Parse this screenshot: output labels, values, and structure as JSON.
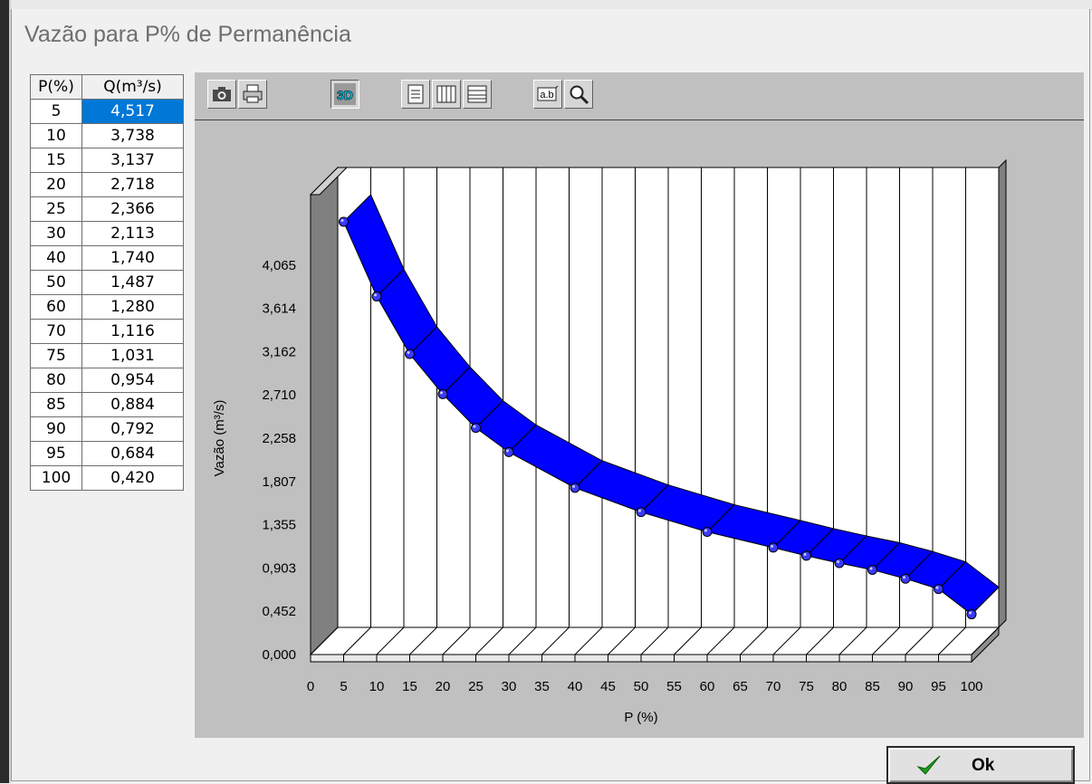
{
  "window": {
    "title": "Vazão para P% de Permanência"
  },
  "table": {
    "headers": [
      "P(%)",
      "Q(m³/s)"
    ],
    "rows": [
      [
        "5",
        "4,517"
      ],
      [
        "10",
        "3,738"
      ],
      [
        "15",
        "3,137"
      ],
      [
        "20",
        "2,718"
      ],
      [
        "25",
        "2,366"
      ],
      [
        "30",
        "2,113"
      ],
      [
        "40",
        "1,740"
      ],
      [
        "50",
        "1,487"
      ],
      [
        "60",
        "1,280"
      ],
      [
        "70",
        "1,116"
      ],
      [
        "75",
        "1,031"
      ],
      [
        "80",
        "0,954"
      ],
      [
        "85",
        "0,884"
      ],
      [
        "90",
        "0,792"
      ],
      [
        "95",
        "0,684"
      ],
      [
        "100",
        "0,420"
      ]
    ],
    "selected_row": 0
  },
  "toolbar": {
    "buttons": [
      "camera-icon",
      "printer-icon",
      "3d-icon",
      "document-icon",
      "vertical-grid-icon",
      "horizontal-grid-icon",
      "label-icon",
      "zoom-icon"
    ],
    "button_3d_label": "3D",
    "button_labels_label": "a.b"
  },
  "chart_data": {
    "type": "area",
    "mode": "3d",
    "x": [
      5,
      10,
      15,
      20,
      25,
      30,
      40,
      50,
      60,
      70,
      75,
      80,
      85,
      90,
      95,
      100
    ],
    "values": [
      4.517,
      3.738,
      3.137,
      2.718,
      2.366,
      2.113,
      1.74,
      1.487,
      1.28,
      1.116,
      1.031,
      0.954,
      0.884,
      0.792,
      0.684,
      0.42
    ],
    "xlabel": "P (%)",
    "ylabel": "Vazão (m³/s)",
    "xlim": [
      0,
      100
    ],
    "ylim": [
      0,
      4.517
    ],
    "x_ticks": [
      "0",
      "5",
      "10",
      "15",
      "20",
      "25",
      "30",
      "35",
      "40",
      "45",
      "50",
      "55",
      "60",
      "65",
      "70",
      "75",
      "80",
      "85",
      "90",
      "95",
      "100"
    ],
    "y_ticks": [
      {
        "v": 0,
        "label": "0,000"
      },
      {
        "v": 0.452,
        "label": "0,452"
      },
      {
        "v": 0.903,
        "label": "0,903"
      },
      {
        "v": 1.355,
        "label": "1,355"
      },
      {
        "v": 1.807,
        "label": "1,807"
      },
      {
        "v": 2.258,
        "label": "2,258"
      },
      {
        "v": 2.71,
        "label": "2,710"
      },
      {
        "v": 3.162,
        "label": "3,162"
      },
      {
        "v": 3.614,
        "label": "3,614"
      },
      {
        "v": 4.065,
        "label": "4,065"
      }
    ],
    "series_color": "#0000ff",
    "grid": "vertical"
  },
  "ok_button": {
    "label": "Ok"
  }
}
